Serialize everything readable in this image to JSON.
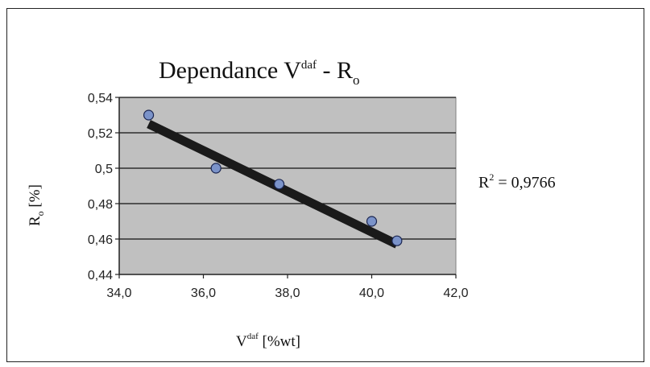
{
  "chart_data": {
    "type": "scatter",
    "title": {
      "main": "Dependance  V",
      "sup": "daf",
      "tail": " - R",
      "sub": "o"
    },
    "xlabel": {
      "main": "V",
      "sup": "daf",
      "tail": " [%wt]"
    },
    "ylabel": {
      "main": "R",
      "sub": "o",
      "tail": " [%]"
    },
    "xlim": [
      34.0,
      42.0
    ],
    "ylim": [
      0.44,
      0.54
    ],
    "xticks": [
      "34,0",
      "36,0",
      "38,0",
      "40,0",
      "42,0"
    ],
    "yticks": [
      "0,44",
      "0,46",
      "0,48",
      "0,5",
      "0,52",
      "0,54"
    ],
    "xtick_values": [
      34,
      36,
      38,
      40,
      42
    ],
    "ytick_values": [
      0.44,
      0.46,
      0.48,
      0.5,
      0.52,
      0.54
    ],
    "grid": "horizontal",
    "points": [
      {
        "x": 34.7,
        "y": 0.53
      },
      {
        "x": 36.3,
        "y": 0.5
      },
      {
        "x": 37.8,
        "y": 0.491
      },
      {
        "x": 40.0,
        "y": 0.47
      },
      {
        "x": 40.6,
        "y": 0.459
      }
    ],
    "trendline": {
      "x": [
        34.7,
        40.6
      ],
      "y": [
        0.525,
        0.457
      ]
    },
    "annotation": {
      "main": "R",
      "sup": "2",
      "tail": "  = 0,9766"
    },
    "colors": {
      "plot_bg": "#c0c0c0",
      "point": "#7b93c9",
      "point_edge": "#1a2550",
      "trendline": "#1a1a1a"
    }
  }
}
